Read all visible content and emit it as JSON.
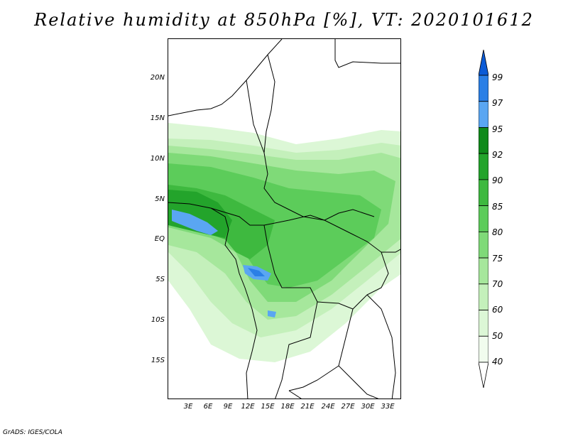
{
  "title": "Relative humidity at 850hPa [%], VT: 2020101612",
  "footer": "GrADS: IGES/COLA",
  "y_axis": {
    "labels": [
      "20N",
      "15N",
      "10N",
      "5N",
      "EQ",
      "5S",
      "10S",
      "15S"
    ]
  },
  "x_axis": {
    "labels": [
      "3E",
      "6E",
      "9E",
      "12E",
      "15E",
      "18E",
      "21E",
      "24E",
      "27E",
      "30E",
      "33E"
    ]
  },
  "colorbar": {
    "levels": [
      "99",
      "97",
      "95",
      "92",
      "90",
      "85",
      "80",
      "75",
      "70",
      "60",
      "50",
      "40"
    ],
    "colors": [
      "#0b5bd6",
      "#2a7fe6",
      "#5aa6f2",
      "#0f8a1a",
      "#23a42b",
      "#3eb93f",
      "#5ccc5a",
      "#7fda78",
      "#a6e79c",
      "#c4f0bb",
      "#dcf7d6",
      "#f1fcee",
      "#ffffff"
    ]
  }
}
